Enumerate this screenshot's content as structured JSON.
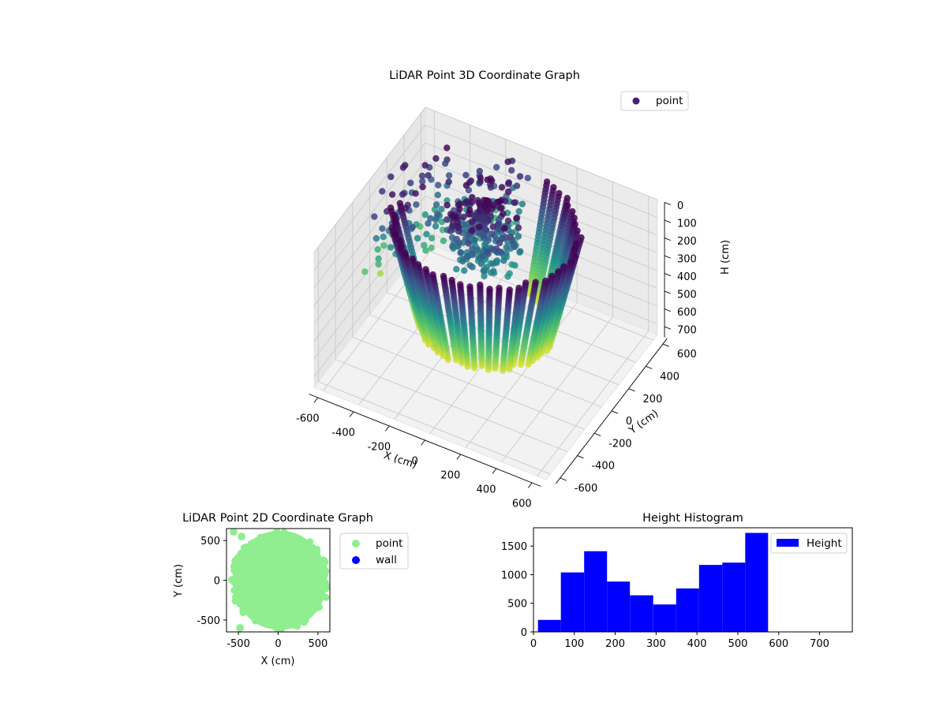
{
  "chart_data": [
    {
      "type": "scatter3d",
      "title": "LiDAR Point 3D Coordinate Graph",
      "xlabel": "X (cm)",
      "ylabel": "Y (cm)",
      "zlabel": "H (cm)",
      "xlim": [
        -650,
        650
      ],
      "ylim": [
        -650,
        650
      ],
      "zlim": [
        0,
        760
      ],
      "z_inverted": true,
      "xticks": [
        -600,
        -400,
        -200,
        0,
        200,
        400,
        600
      ],
      "yticks": [
        -600,
        -400,
        -200,
        0,
        200,
        400,
        600
      ],
      "zticks": [
        0,
        100,
        200,
        300,
        400,
        500,
        600,
        700
      ],
      "colormap": "viridis",
      "legend": {
        "entries": [
          "point"
        ],
        "placement": "top-right"
      },
      "shape": "partial ring of vertical scan columns, radius ~450 cm, heights 0-600 cm, dense cluster near upper-left, open toward -X"
    },
    {
      "type": "scatter",
      "title": "LiDAR Point 2D Coordinate Graph",
      "xlabel": "X (cm)",
      "ylabel": "Y (cm)",
      "xlim": [
        -650,
        650
      ],
      "ylim": [
        -650,
        650
      ],
      "xticks": [
        -500,
        0,
        500
      ],
      "yticks": [
        -500,
        0,
        500
      ],
      "series": [
        {
          "name": "point",
          "color": "#90ee90",
          "region": "disc of radius ~580 cm centered near (0,0), nearly filled"
        },
        {
          "name": "wall",
          "color": "#0000ff",
          "points": []
        }
      ],
      "legend": {
        "entries": [
          "point",
          "wall"
        ],
        "placement": "right, outside"
      }
    },
    {
      "type": "bar",
      "title": "Height Histogram",
      "xlim": [
        0,
        780
      ],
      "ylim": [
        0,
        1820
      ],
      "xticks": [
        0,
        100,
        200,
        300,
        400,
        500,
        600,
        700
      ],
      "yticks": [
        0,
        500,
        1000,
        1500
      ],
      "bin_edges": [
        11,
        67,
        124,
        180,
        236,
        293,
        349,
        405,
        462,
        518,
        574
      ],
      "series": [
        {
          "name": "Height",
          "color": "#0000ff",
          "values": [
            210,
            1040,
            1410,
            880,
            640,
            480,
            760,
            1170,
            1210,
            1730
          ]
        }
      ],
      "legend": {
        "entries": [
          "Height"
        ],
        "placement": "top-right"
      }
    }
  ]
}
